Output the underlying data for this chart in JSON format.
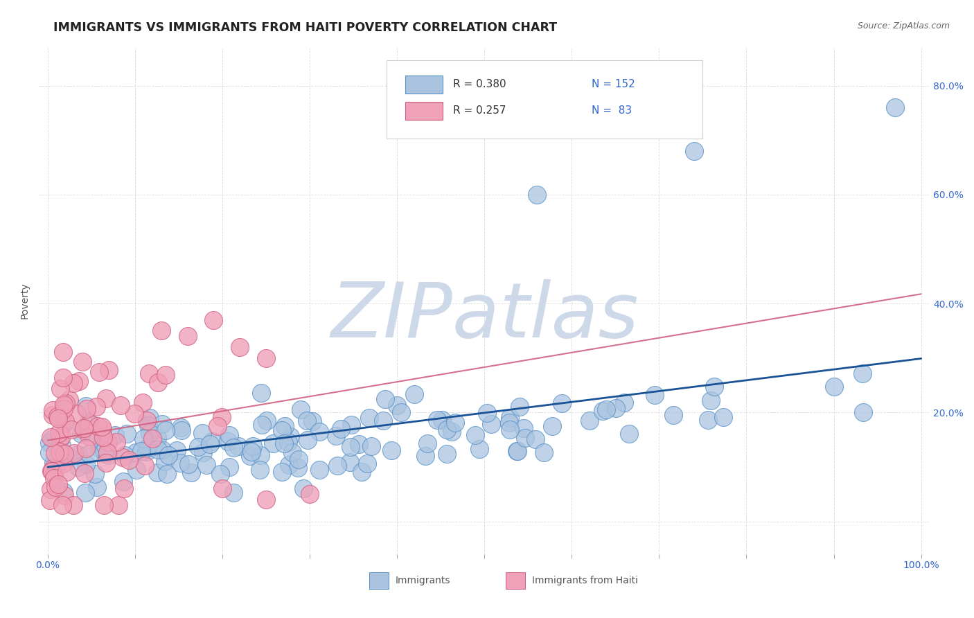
{
  "title": "IMMIGRANTS VS IMMIGRANTS FROM HAITI POVERTY CORRELATION CHART",
  "source": "Source: ZipAtlas.com",
  "ylabel": "Poverty",
  "watermark": "ZIPatlas",
  "series1_color": "#aac4e0",
  "series1_edge": "#5590c8",
  "series2_color": "#f0a0b8",
  "series2_edge": "#d06080",
  "line1_color": "#1a5296",
  "line2_color": "#d06080",
  "background_color": "#ffffff",
  "grid_color": "#cccccc",
  "legend_text_color": "#3366cc",
  "watermark_color": "#cdd8e8",
  "title_color": "#222222",
  "source_color": "#666666",
  "n1": 152,
  "n2": 83,
  "r1": 0.38,
  "r2": 0.257
}
